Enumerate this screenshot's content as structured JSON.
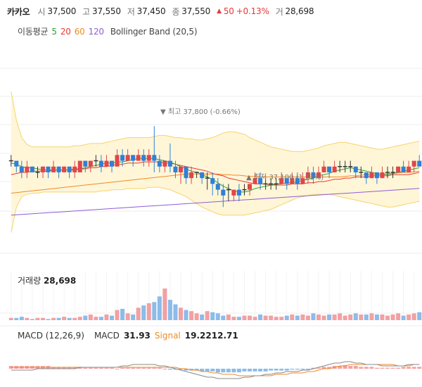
{
  "header": {
    "stock_name": "카카오",
    "open_label": "시",
    "open": "37,500",
    "high_label": "고",
    "high": "37,550",
    "low_label": "저",
    "low": "37,450",
    "close_label": "종",
    "close": "37,550",
    "change_arrow": "▲",
    "change": "50",
    "change_pct": "+0.13%",
    "volume_label": "거",
    "volume": "28,698"
  },
  "indicators": {
    "ma_label": "이동평균",
    "ma_periods": [
      "5",
      "20",
      "60",
      "120"
    ],
    "ma_colors": [
      "#2e9e3a",
      "#e53935",
      "#f08a24",
      "#8e5cd6"
    ],
    "bollinger": "Bollinger Band (20,5)"
  },
  "annotations": {
    "high": "▼ 최고 37,800 (-0.66%)",
    "low": "▲ 최저 37,100 (1.21%)"
  },
  "volume_panel": {
    "label": "거래량",
    "value": "28,698"
  },
  "macd_panel": {
    "label": "MACD (12,26,9)",
    "macd_label": "MACD",
    "macd_value": "31.93",
    "signal_label": "Signal",
    "signal_value": "19.2212.71"
  },
  "colors": {
    "up": "#e0464b",
    "down": "#2f80d6",
    "up_light": "#f2a0a2",
    "down_light": "#8bbcea",
    "band_fill": "#fff6d8",
    "band_line": "#f7d36a",
    "neutral": "#333333"
  },
  "chart_data": {
    "type": "candlestick",
    "ylim": [
      36700,
      38300
    ],
    "high": 37800,
    "low": 37100,
    "candles": [
      [
        37500,
        37500,
        37450,
        37550
      ],
      [
        37500,
        37450,
        37400,
        37500
      ],
      [
        37450,
        37400,
        37350,
        37500
      ],
      [
        37400,
        37450,
        37350,
        37500
      ],
      [
        37450,
        37400,
        37400,
        37450
      ],
      [
        37400,
        37400,
        37350,
        37450
      ],
      [
        37400,
        37450,
        37350,
        37450
      ],
      [
        37450,
        37400,
        37350,
        37450
      ],
      [
        37400,
        37450,
        37400,
        37500
      ],
      [
        37450,
        37400,
        37350,
        37450
      ],
      [
        37400,
        37450,
        37400,
        37450
      ],
      [
        37450,
        37400,
        37350,
        37450
      ],
      [
        37400,
        37450,
        37350,
        37500
      ],
      [
        37400,
        37500,
        37400,
        37500
      ],
      [
        37500,
        37450,
        37400,
        37500
      ],
      [
        37450,
        37500,
        37400,
        37500
      ],
      [
        37500,
        37500,
        37450,
        37550
      ],
      [
        37500,
        37450,
        37400,
        37550
      ],
      [
        37450,
        37500,
        37450,
        37550
      ],
      [
        37500,
        37450,
        37400,
        37500
      ],
      [
        37450,
        37550,
        37450,
        37600
      ],
      [
        37550,
        37500,
        37450,
        37600
      ],
      [
        37500,
        37550,
        37500,
        37600
      ],
      [
        37550,
        37500,
        37450,
        37550
      ],
      [
        37500,
        37550,
        37500,
        37600
      ],
      [
        37550,
        37500,
        37450,
        37600
      ],
      [
        37500,
        37550,
        37450,
        37600
      ],
      [
        37550,
        37500,
        37400,
        37800
      ],
      [
        37500,
        37450,
        37400,
        37550
      ],
      [
        37450,
        37500,
        37400,
        37500
      ],
      [
        37500,
        37450,
        37400,
        37650
      ],
      [
        37450,
        37400,
        37350,
        37500
      ],
      [
        37400,
        37450,
        37300,
        37450
      ],
      [
        37450,
        37350,
        37300,
        37450
      ],
      [
        37350,
        37400,
        37300,
        37450
      ],
      [
        37400,
        37400,
        37350,
        37400
      ],
      [
        37400,
        37350,
        37300,
        37400
      ],
      [
        37350,
        37350,
        37250,
        37400
      ],
      [
        37350,
        37300,
        37200,
        37400
      ],
      [
        37300,
        37250,
        37200,
        37350
      ],
      [
        37250,
        37200,
        37100,
        37300
      ],
      [
        37250,
        37250,
        37150,
        37300
      ],
      [
        37200,
        37250,
        37150,
        37250
      ],
      [
        37250,
        37200,
        37150,
        37300
      ],
      [
        37250,
        37250,
        37200,
        37300
      ],
      [
        37250,
        37300,
        37200,
        37300
      ],
      [
        37300,
        37350,
        37300,
        37400
      ],
      [
        37350,
        37300,
        37250,
        37400
      ],
      [
        37300,
        37300,
        37250,
        37350
      ],
      [
        37300,
        37300,
        37250,
        37350
      ],
      [
        37300,
        37300,
        37250,
        37350
      ],
      [
        37300,
        37350,
        37300,
        37400
      ],
      [
        37350,
        37300,
        37250,
        37350
      ],
      [
        37300,
        37350,
        37300,
        37400
      ],
      [
        37350,
        37300,
        37250,
        37400
      ],
      [
        37300,
        37350,
        37300,
        37400
      ],
      [
        37350,
        37400,
        37300,
        37450
      ],
      [
        37400,
        37350,
        37300,
        37450
      ],
      [
        37350,
        37400,
        37350,
        37450
      ],
      [
        37400,
        37450,
        37400,
        37500
      ],
      [
        37450,
        37400,
        37350,
        37450
      ],
      [
        37400,
        37450,
        37400,
        37500
      ],
      [
        37450,
        37450,
        37400,
        37500
      ],
      [
        37450,
        37450,
        37400,
        37500
      ],
      [
        37450,
        37450,
        37400,
        37500
      ],
      [
        37450,
        37400,
        37350,
        37450
      ],
      [
        37400,
        37400,
        37350,
        37450
      ],
      [
        37400,
        37350,
        37300,
        37400
      ],
      [
        37350,
        37400,
        37350,
        37450
      ],
      [
        37400,
        37350,
        37300,
        37400
      ],
      [
        37350,
        37400,
        37350,
        37450
      ],
      [
        37400,
        37400,
        37350,
        37450
      ],
      [
        37400,
        37400,
        37350,
        37450
      ],
      [
        37400,
        37450,
        37400,
        37450
      ],
      [
        37450,
        37400,
        37400,
        37500
      ],
      [
        37400,
        37450,
        37400,
        37500
      ],
      [
        37450,
        37500,
        37400,
        37500
      ],
      [
        37500,
        37450,
        37450,
        37550
      ]
    ],
    "ma5": [
      37480,
      37470,
      37450,
      37440,
      37440,
      37430,
      37420,
      37420,
      37420,
      37420,
      37420,
      37420,
      37420,
      37430,
      37440,
      37450,
      37460,
      37470,
      37480,
      37480,
      37490,
      37490,
      37500,
      37510,
      37520,
      37520,
      37520,
      37520,
      37510,
      37500,
      37490,
      37470,
      37450,
      37430,
      37410,
      37400,
      37380,
      37360,
      37340,
      37310,
      37280,
      37260,
      37240,
      37230,
      37230,
      37240,
      37260,
      37270,
      37280,
      37290,
      37300,
      37300,
      37310,
      37310,
      37320,
      37330,
      37340,
      37350,
      37370,
      37380,
      37390,
      37410,
      37420,
      37430,
      37440,
      37430,
      37420,
      37410,
      37400,
      37390,
      37380,
      37380,
      37390,
      37400,
      37410,
      37420,
      37430,
      37440
    ],
    "ma20": [
      37380,
      37390,
      37400,
      37400,
      37410,
      37410,
      37410,
      37410,
      37420,
      37420,
      37420,
      37420,
      37430,
      37430,
      37430,
      37440,
      37440,
      37450,
      37450,
      37460,
      37470,
      37470,
      37480,
      37480,
      37480,
      37490,
      37490,
      37490,
      37490,
      37480,
      37480,
      37470,
      37460,
      37450,
      37440,
      37430,
      37420,
      37410,
      37390,
      37380,
      37370,
      37350,
      37340,
      37330,
      37320,
      37310,
      37300,
      37300,
      37300,
      37290,
      37290,
      37290,
      37290,
      37300,
      37300,
      37300,
      37310,
      37310,
      37320,
      37320,
      37330,
      37340,
      37340,
      37350,
      37350,
      37360,
      37360,
      37360,
      37370,
      37370,
      37370,
      37370,
      37380,
      37380,
      37380,
      37380,
      37390,
      37400
    ],
    "ma60": [
      37220,
      37225,
      37230,
      37235,
      37240,
      37245,
      37250,
      37255,
      37260,
      37265,
      37270,
      37275,
      37280,
      37285,
      37290,
      37295,
      37300,
      37305,
      37310,
      37315,
      37320,
      37325,
      37330,
      37335,
      37340,
      37345,
      37350,
      37355,
      37360,
      37365,
      37370,
      37375,
      37380,
      37385,
      37385,
      37385,
      37385,
      37385,
      37385,
      37385,
      37380,
      37380,
      37375,
      37375,
      37370,
      37365,
      37365,
      37360,
      37360,
      37360,
      37360,
      37360,
      37360,
      37360,
      37360,
      37360,
      37360,
      37360,
      37360,
      37360,
      37360,
      37360,
      37360,
      37365,
      37370,
      37370,
      37375,
      37380,
      37380,
      37385,
      37385,
      37390,
      37390,
      37395,
      37400,
      37400,
      37405,
      37410
    ],
    "ma120": [
      37030,
      37033,
      37036,
      37039,
      37042,
      37045,
      37048,
      37051,
      37054,
      37057,
      37060,
      37063,
      37066,
      37069,
      37072,
      37075,
      37078,
      37081,
      37084,
      37087,
      37090,
      37093,
      37096,
      37099,
      37102,
      37105,
      37108,
      37111,
      37114,
      37117,
      37120,
      37123,
      37126,
      37129,
      37132,
      37135,
      37138,
      37141,
      37144,
      37147,
      37150,
      37153,
      37156,
      37159,
      37162,
      37165,
      37168,
      37171,
      37174,
      37177,
      37180,
      37183,
      37186,
      37189,
      37192,
      37195,
      37198,
      37201,
      37204,
      37207,
      37210,
      37213,
      37216,
      37219,
      37222,
      37225,
      37228,
      37231,
      37234,
      37237,
      37240,
      37243,
      37246,
      37249,
      37252,
      37255,
      37258,
      37261
    ],
    "bb_upper": [
      38100,
      37850,
      37700,
      37640,
      37620,
      37620,
      37620,
      37620,
      37620,
      37620,
      37620,
      37620,
      37630,
      37630,
      37640,
      37650,
      37650,
      37650,
      37660,
      37670,
      37680,
      37690,
      37700,
      37700,
      37700,
      37700,
      37700,
      37710,
      37720,
      37720,
      37710,
      37700,
      37700,
      37690,
      37690,
      37680,
      37680,
      37690,
      37700,
      37720,
      37740,
      37750,
      37750,
      37740,
      37730,
      37700,
      37680,
      37660,
      37640,
      37620,
      37610,
      37600,
      37590,
      37580,
      37580,
      37580,
      37590,
      37600,
      37610,
      37630,
      37640,
      37650,
      37660,
      37660,
      37650,
      37640,
      37630,
      37620,
      37610,
      37600,
      37600,
      37610,
      37620,
      37630,
      37640,
      37650,
      37660,
      37670
    ],
    "bb_lower": [
      36880,
      37100,
      37190,
      37210,
      37220,
      37220,
      37230,
      37230,
      37230,
      37230,
      37230,
      37230,
      37230,
      37230,
      37230,
      37230,
      37230,
      37240,
      37240,
      37250,
      37250,
      37250,
      37260,
      37260,
      37260,
      37260,
      37270,
      37270,
      37270,
      37260,
      37250,
      37230,
      37210,
      37190,
      37160,
      37130,
      37100,
      37080,
      37060,
      37040,
      37030,
      37030,
      37030,
      37030,
      37030,
      37040,
      37050,
      37060,
      37070,
      37080,
      37100,
      37120,
      37140,
      37160,
      37180,
      37190,
      37200,
      37210,
      37210,
      37210,
      37210,
      37200,
      37190,
      37180,
      37170,
      37160,
      37150,
      37140,
      37130,
      37120,
      37110,
      37100,
      37100,
      37110,
      37120,
      37130,
      37140,
      37150
    ],
    "volume": [
      2,
      2,
      3,
      2,
      1,
      2,
      2,
      1,
      2,
      2,
      3,
      2,
      2,
      3,
      4,
      5,
      3,
      3,
      5,
      4,
      9,
      10,
      6,
      5,
      11,
      13,
      15,
      16,
      21,
      28,
      18,
      14,
      11,
      9,
      8,
      6,
      5,
      8,
      7,
      6,
      4,
      5,
      3,
      3,
      4,
      4,
      3,
      5,
      4,
      4,
      3,
      3,
      4,
      5,
      4,
      5,
      4,
      6,
      5,
      4,
      5,
      5,
      6,
      4,
      5,
      6,
      5,
      5,
      6,
      5,
      5,
      4,
      5,
      6,
      4,
      5,
      6,
      7
    ],
    "macd_hist": [
      3,
      3,
      3,
      3,
      3,
      3,
      3,
      3,
      2,
      2,
      2,
      2,
      2,
      2,
      1,
      1,
      1,
      1,
      1,
      1,
      0,
      1,
      1,
      1,
      1,
      1,
      1,
      1,
      1,
      0,
      -1,
      -1,
      -1,
      -2,
      -2,
      -2,
      -3,
      -3,
      -3,
      -4,
      -4,
      -4,
      -4,
      -4,
      -3,
      -3,
      -3,
      -3,
      -3,
      -2,
      -2,
      -2,
      -2,
      -1,
      -1,
      -1,
      -1,
      1,
      1,
      2,
      2,
      3,
      3,
      4,
      3,
      3,
      2,
      2,
      2,
      1,
      1,
      1,
      1,
      1,
      2,
      2,
      2,
      2
    ],
    "macd_line": [
      -1,
      -1,
      -1,
      -1,
      -1,
      0,
      0,
      0,
      0,
      0,
      0,
      0,
      0,
      1,
      1,
      1,
      1,
      1,
      1,
      1,
      1,
      2,
      2,
      3,
      3,
      3,
      3,
      3,
      2,
      2,
      1,
      0,
      -1,
      -2,
      -3,
      -4,
      -5,
      -6,
      -6,
      -7,
      -7,
      -7,
      -7,
      -7,
      -6,
      -6,
      -5,
      -5,
      -4,
      -4,
      -3,
      -3,
      -2,
      -2,
      -2,
      -1,
      -1,
      0,
      1,
      2,
      3,
      4,
      4,
      5,
      5,
      4,
      4,
      3,
      3,
      3,
      2,
      2,
      2,
      2,
      2,
      3,
      3,
      3
    ],
    "signal_line": [
      1,
      1,
      1,
      1,
      1,
      1,
      1,
      1,
      1,
      1,
      1,
      1,
      1,
      1,
      1,
      1,
      1,
      1,
      1,
      1,
      1,
      1,
      1,
      1,
      1,
      1,
      1,
      1,
      1,
      1,
      1,
      1,
      0,
      0,
      -1,
      -1,
      -2,
      -2,
      -3,
      -3,
      -4,
      -4,
      -4,
      -5,
      -5,
      -5,
      -5,
      -5,
      -5,
      -5,
      -4,
      -4,
      -4,
      -3,
      -3,
      -3,
      -2,
      -2,
      -1,
      0,
      0,
      1,
      2,
      2,
      3,
      3,
      3,
      3,
      3,
      3,
      3,
      3,
      3,
      2,
      2,
      2,
      3,
      3
    ]
  }
}
